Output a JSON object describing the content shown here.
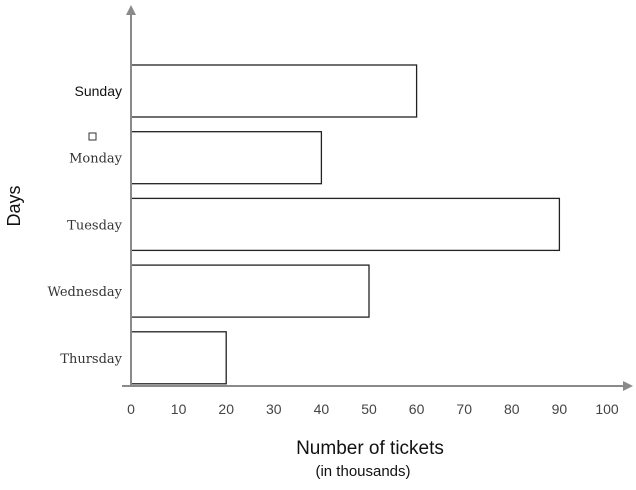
{
  "chart_data": {
    "type": "bar",
    "orientation": "horizontal",
    "categories": [
      "Sunday",
      "Monday",
      "Tuesday",
      "Wednesday",
      "Thursday"
    ],
    "values": [
      60,
      40,
      90,
      50,
      20
    ],
    "xlabel": "Number of tickets",
    "xlabel_sub": "(in thousands)",
    "ylabel": "Days",
    "xlim": [
      0,
      100
    ],
    "xticks": [
      0,
      10,
      20,
      30,
      40,
      50,
      60,
      70,
      80,
      90,
      100
    ],
    "grid": false,
    "colors": {
      "bar_fill": "#ffffff",
      "bar_stroke": "#222222",
      "axis": "#8a8a8a"
    }
  }
}
